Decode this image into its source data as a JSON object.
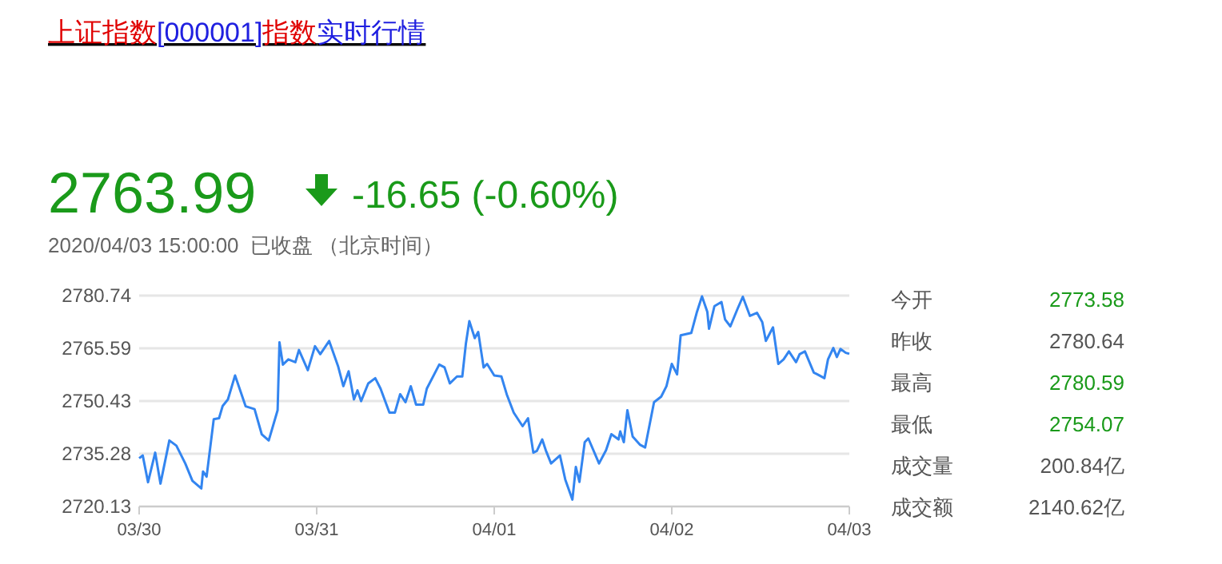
{
  "chart_data": {
    "type": "line",
    "title": "上证指数[000001]指数实时行情",
    "subtitle": "2020/04/03 15:00:00  已收盘 （北京时间）",
    "annotations": [
      "2763.99",
      "-16.65 (-0.60%)",
      "今开 2773.58",
      "昨收 2780.64",
      "最高 2780.59",
      "最低 2754.07",
      "成交量 200.84亿",
      "成交额 2140.62亿"
    ],
    "xlim": [
      "2020-03-30",
      "2020-04-03"
    ],
    "xticks": [
      {
        "value": "2020-03-30",
        "label": "03/30"
      },
      {
        "value": "2020-03-31",
        "label": "03/31"
      },
      {
        "value": "2020-04-01",
        "label": "04/01"
      },
      {
        "value": "2020-04-02",
        "label": "04/02"
      },
      {
        "value": "2020-04-03",
        "label": "04/03"
      }
    ],
    "ylim": [
      2720.13,
      2780.74
    ],
    "yticks": [
      2720.13,
      2735.28,
      2750.43,
      2765.59,
      2780.74
    ],
    "grid": "y",
    "marker": "none",
    "line_style": "solid",
    "series": [
      {
        "color": "#3385f0",
        "x": [
          "2020-03-30T00:00",
          "2020-03-30T00:29",
          "2020-03-30T01:12",
          "2020-03-30T02:10",
          "2020-03-30T02:53",
          "2020-03-30T04:05",
          "2020-03-30T05:02",
          "2020-03-30T06:14",
          "2020-03-30T07:12",
          "2020-03-30T08:24",
          "2020-03-30T08:38",
          "2020-03-30T09:07",
          "2020-03-30T10:05",
          "2020-03-30T10:48",
          "2020-03-30T11:17",
          "2020-03-30T12:00",
          "2020-03-30T12:58",
          "2020-03-30T14:24",
          "2020-03-30T15:36",
          "2020-03-30T16:34",
          "2020-03-30T17:31",
          "2020-03-30T18:43",
          "2020-03-30T18:58",
          "2020-03-30T19:26",
          "2020-03-30T20:10",
          "2020-03-30T21:07",
          "2020-03-30T21:36",
          "2020-03-30T22:48",
          "2020-03-30T23:46",
          "2020-03-31T00:29",
          "2020-03-31T01:41",
          "2020-03-31T02:53",
          "2020-03-31T03:36",
          "2020-03-31T04:19",
          "2020-03-31T05:02",
          "2020-03-31T05:31",
          "2020-03-31T06:00",
          "2020-03-31T06:58",
          "2020-03-31T07:55",
          "2020-03-31T08:38",
          "2020-03-31T09:50",
          "2020-03-31T10:34",
          "2020-03-31T11:17",
          "2020-03-31T12:00",
          "2020-03-31T12:43",
          "2020-03-31T13:26",
          "2020-03-31T14:24",
          "2020-03-31T14:53",
          "2020-03-31T16:34",
          "2020-03-31T17:17",
          "2020-03-31T18:00",
          "2020-03-31T18:58",
          "2020-03-31T19:41",
          "2020-03-31T20:10",
          "2020-03-31T20:38",
          "2020-03-31T21:22",
          "2020-03-31T21:50",
          "2020-03-31T22:34",
          "2020-03-31T23:02",
          "2020-04-01T00:00",
          "2020-04-01T00:58",
          "2020-04-01T01:41",
          "2020-04-01T02:38",
          "2020-04-01T03:50",
          "2020-04-01T04:34",
          "2020-04-01T05:17",
          "2020-04-01T05:46",
          "2020-04-01T06:29",
          "2020-04-01T06:58",
          "2020-04-01T07:41",
          "2020-04-01T08:53",
          "2020-04-01T09:36",
          "2020-04-01T10:34",
          "2020-04-01T11:02",
          "2020-04-01T11:31",
          "2020-04-01T12:14",
          "2020-04-01T12:43",
          "2020-04-01T14:10",
          "2020-04-01T15:07",
          "2020-04-01T15:50",
          "2020-04-01T16:48",
          "2020-04-01T17:02",
          "2020-04-01T17:31",
          "2020-04-01T18:00",
          "2020-04-01T18:43",
          "2020-04-01T19:41",
          "2020-04-01T20:24",
          "2020-04-01T21:36",
          "2020-04-01T22:34",
          "2020-04-01T23:17",
          "2020-04-02T00:00",
          "2020-04-02T00:43",
          "2020-04-02T01:12",
          "2020-04-02T02:38",
          "2020-04-02T03:22",
          "2020-04-02T04:05",
          "2020-04-02T04:48",
          "2020-04-02T05:02",
          "2020-04-02T05:46",
          "2020-04-02T06:43",
          "2020-04-02T07:12",
          "2020-04-02T07:55",
          "2020-04-02T08:53",
          "2020-04-02T09:36",
          "2020-04-02T10:34",
          "2020-04-02T11:31",
          "2020-04-02T12:14",
          "2020-04-02T12:43",
          "2020-04-02T13:41",
          "2020-04-02T14:24",
          "2020-04-02T15:07",
          "2020-04-02T15:50",
          "2020-04-02T16:48",
          "2020-04-02T17:17",
          "2020-04-02T18:00",
          "2020-04-02T19:12",
          "2020-04-02T19:41",
          "2020-04-02T20:38",
          "2020-04-02T21:07",
          "2020-04-02T21:50",
          "2020-04-02T22:19",
          "2020-04-02T22:48",
          "2020-04-02T23:31",
          "2020-04-03T00:00"
        ],
        "values": [
          2734.0,
          2734.8,
          2727.1,
          2735.6,
          2726.7,
          2739.1,
          2737.6,
          2732.5,
          2727.5,
          2725.3,
          2730.2,
          2728.7,
          2745.2,
          2745.5,
          2749.0,
          2750.9,
          2757.8,
          2748.9,
          2748.1,
          2740.9,
          2739.1,
          2747.8,
          2767.3,
          2760.9,
          2762.4,
          2761.6,
          2765.1,
          2759.3,
          2766.2,
          2763.9,
          2767.7,
          2760.5,
          2754.7,
          2759.0,
          2750.9,
          2753.5,
          2750.4,
          2755.5,
          2757.0,
          2754.0,
          2747.1,
          2747.1,
          2752.4,
          2750.1,
          2754.7,
          2749.4,
          2749.4,
          2754.0,
          2760.9,
          2760.1,
          2755.5,
          2757.5,
          2757.5,
          2766.9,
          2773.4,
          2768.5,
          2770.3,
          2760.1,
          2761.1,
          2757.8,
          2757.5,
          2752.4,
          2747.1,
          2743.2,
          2745.5,
          2735.6,
          2736.1,
          2739.4,
          2736.3,
          2732.5,
          2734.8,
          2727.9,
          2722.1,
          2731.5,
          2727.2,
          2738.6,
          2739.7,
          2732.5,
          2736.3,
          2740.9,
          2739.4,
          2741.7,
          2738.6,
          2747.8,
          2740.2,
          2737.9,
          2737.1,
          2750.1,
          2751.7,
          2754.7,
          2761.1,
          2758.1,
          2769.3,
          2770.0,
          2775.8,
          2780.5,
          2776.1,
          2771.2,
          2777.7,
          2778.9,
          2773.9,
          2771.9,
          2776.9,
          2780.4,
          2774.9,
          2775.8,
          2773.1,
          2767.7,
          2771.6,
          2761.1,
          2762.4,
          2764.7,
          2761.6,
          2763.9,
          2764.7,
          2758.6,
          2758.1,
          2757.0,
          2762.4,
          2765.7,
          2763.1,
          2765.4,
          2764.3,
          2764.0
        ]
      }
    ]
  }
}
